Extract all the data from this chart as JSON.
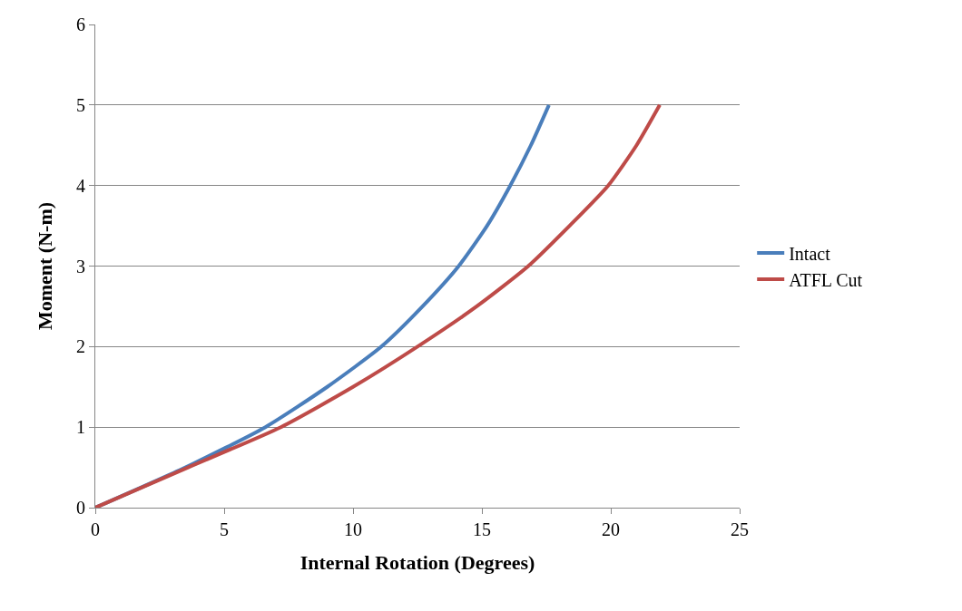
{
  "chart_data": {
    "type": "line",
    "xlabel": "Internal Rotation (Degrees)",
    "ylabel": "Moment (N-m)",
    "series": [
      {
        "name": "Intact",
        "color": "#4a7ebb",
        "x": [
          0,
          3.5,
          6.6,
          9.0,
          11.1,
          12.7,
          14.1,
          15.2,
          16.1,
          16.9,
          17.6
        ],
        "values": [
          0,
          0.5,
          1,
          1.5,
          2,
          2.5,
          3,
          3.5,
          4,
          4.5,
          5
        ]
      },
      {
        "name": "ATFL Cut",
        "color": "#be4b48",
        "x": [
          0,
          3.6,
          7.2,
          10.0,
          12.5,
          14.8,
          16.8,
          18.4,
          19.9,
          21.0,
          21.9
        ],
        "values": [
          0,
          0.5,
          1,
          1.5,
          2,
          2.5,
          3,
          3.5,
          4,
          4.5,
          5
        ]
      }
    ],
    "xlim": [
      0,
      25
    ],
    "xticks": [
      0,
      5,
      10,
      15,
      20,
      25
    ],
    "ylim": [
      0,
      6
    ],
    "yticks": [
      0,
      1,
      2,
      3,
      4,
      5,
      6
    ],
    "grid": "y",
    "legend": "right",
    "marker": "none",
    "line_style": "solid"
  }
}
